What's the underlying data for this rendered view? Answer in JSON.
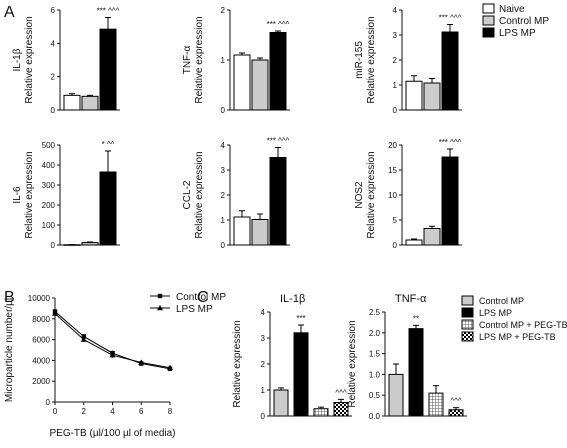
{
  "panel_letters": {
    "a": "A",
    "b": "B",
    "c": "C"
  },
  "legend_a": [
    {
      "label": "Naive",
      "fill": "#ffffff"
    },
    {
      "label": "Control MP",
      "fill": "#cccccc"
    },
    {
      "label": "LPS MP",
      "fill": "#000000"
    }
  ],
  "legend_b": [
    {
      "label": "Control MP",
      "marker": "square"
    },
    {
      "label": "LPS MP",
      "marker": "triangle"
    }
  ],
  "legend_c": [
    {
      "label": "Control MP",
      "pattern": "grey"
    },
    {
      "label": "LPS MP",
      "pattern": "black"
    },
    {
      "label": "Control MP + PEG-TB",
      "pattern": "grid"
    },
    {
      "label": "LPS MP + PEG-TB",
      "pattern": "checker"
    }
  ],
  "colors": {
    "naive": "#ffffff",
    "control": "#cccccc",
    "lps": "#000000",
    "axis": "#111111"
  },
  "chart_data": [
    {
      "id": "A-IL1b",
      "type": "bar",
      "ylabel": [
        "IL-1β",
        "Relative expression"
      ],
      "ylim": [
        0,
        6
      ],
      "yticks": [
        0,
        2,
        4,
        6
      ],
      "categories": [
        "Naive",
        "Control MP",
        "LPS MP"
      ],
      "values": [
        0.88,
        0.82,
        4.85
      ],
      "errors": [
        0.1,
        0.06,
        0.7
      ],
      "annotations": [
        {
          "bar": 2,
          "text": "*** ^^^"
        }
      ]
    },
    {
      "id": "A-TNFa",
      "type": "bar",
      "ylabel": [
        "TNF-α",
        "Relative expression"
      ],
      "ylim": [
        0,
        2
      ],
      "yticks": [
        0,
        1,
        2
      ],
      "categories": [
        "Naive",
        "Control MP",
        "LPS MP"
      ],
      "values": [
        1.1,
        1.0,
        1.55
      ],
      "errors": [
        0.04,
        0.04,
        0.03
      ],
      "annotations": [
        {
          "bar": 2,
          "text": "*** ^^^"
        }
      ]
    },
    {
      "id": "A-miR155",
      "type": "bar",
      "ylabel": [
        "miR-155",
        "Relative expression"
      ],
      "ylim": [
        0,
        4
      ],
      "yticks": [
        0,
        1,
        2,
        3,
        4
      ],
      "categories": [
        "Naive",
        "Control MP",
        "LPS MP"
      ],
      "values": [
        1.15,
        1.08,
        3.12
      ],
      "errors": [
        0.22,
        0.18,
        0.3
      ],
      "annotations": [
        {
          "bar": 2,
          "text": "*** ^^^"
        }
      ]
    },
    {
      "id": "A-IL6",
      "type": "bar",
      "ylabel": [
        "IL-6",
        "Relative expression"
      ],
      "ylim": [
        0,
        500
      ],
      "yticks": [
        0,
        100,
        200,
        300,
        400,
        500
      ],
      "categories": [
        "Naive",
        "Control MP",
        "LPS MP"
      ],
      "values": [
        1,
        12,
        365
      ],
      "errors": [
        1,
        3,
        105
      ],
      "annotations": [
        {
          "bar": 2,
          "text": "* ^^"
        }
      ]
    },
    {
      "id": "A-CCL2",
      "type": "bar",
      "ylabel": [
        "CCL-2",
        "Relative expression"
      ],
      "ylim": [
        0,
        4
      ],
      "yticks": [
        0,
        1,
        2,
        3,
        4
      ],
      "categories": [
        "Naive",
        "Control MP",
        "LPS MP"
      ],
      "values": [
        1.12,
        1.02,
        3.5
      ],
      "errors": [
        0.25,
        0.22,
        0.4
      ],
      "annotations": [
        {
          "bar": 2,
          "text": "*** ^^^"
        }
      ]
    },
    {
      "id": "A-NOS2",
      "type": "bar",
      "ylabel": [
        "NOS2",
        "Relative expression"
      ],
      "ylim": [
        0,
        20
      ],
      "yticks": [
        0,
        5,
        10,
        15,
        20
      ],
      "categories": [
        "Naive",
        "Control MP",
        "LPS MP"
      ],
      "values": [
        1.0,
        3.3,
        17.6
      ],
      "errors": [
        0.2,
        0.45,
        1.6
      ],
      "annotations": [
        {
          "bar": 2,
          "text": "*** ^^^"
        }
      ]
    },
    {
      "id": "B",
      "type": "line",
      "xlabel": "PEG-TB (µl/100 µl of media)",
      "ylabel": "Microparticle number/µl",
      "xlim": [
        0,
        8
      ],
      "xticks": [
        0,
        2,
        4,
        6,
        8
      ],
      "ylim": [
        0,
        10000
      ],
      "yticks": [
        0,
        2000,
        4000,
        6000,
        8000,
        10000
      ],
      "x": [
        0,
        2,
        4,
        6,
        8
      ],
      "series": [
        {
          "name": "Control MP",
          "marker": "square",
          "values": [
            8700,
            6300,
            4700,
            3700,
            3200
          ]
        },
        {
          "name": "LPS MP",
          "marker": "triangle",
          "values": [
            8500,
            6000,
            4500,
            3800,
            3300
          ]
        }
      ]
    },
    {
      "id": "C-IL1b",
      "type": "bar",
      "title": "IL-1β",
      "ylabel": "Relative expression",
      "ylim": [
        0,
        4
      ],
      "yticks": [
        0,
        1,
        2,
        3,
        4
      ],
      "categories": [
        "Control MP",
        "LPS MP",
        "Control MP + PEG-TB",
        "LPS MP + PEG-TB"
      ],
      "values": [
        1.0,
        3.2,
        0.28,
        0.52
      ],
      "errors": [
        0.08,
        0.3,
        0.06,
        0.12
      ],
      "annotations": [
        {
          "bar": 1,
          "text": "***"
        },
        {
          "bar": 3,
          "text": "^^^"
        }
      ]
    },
    {
      "id": "C-TNFa",
      "type": "bar",
      "title": "TNF-α",
      "ylabel": "Relative expression",
      "ylim": [
        0,
        2.5
      ],
      "yticks": [
        0,
        0.5,
        1.0,
        1.5,
        2.0,
        2.5
      ],
      "categories": [
        "Control MP",
        "LPS MP",
        "Control MP + PEG-TB",
        "LPS MP + PEG-TB"
      ],
      "values": [
        1.0,
        2.1,
        0.55,
        0.15
      ],
      "errors": [
        0.25,
        0.08,
        0.18,
        0.05
      ],
      "annotations": [
        {
          "bar": 1,
          "text": "**"
        },
        {
          "bar": 3,
          "text": "^^^"
        }
      ]
    }
  ]
}
